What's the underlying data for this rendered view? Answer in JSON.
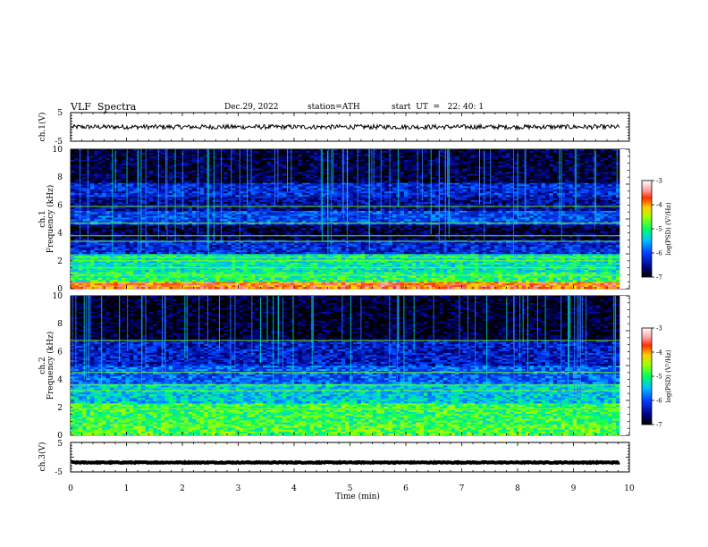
{
  "header": {
    "title": "VLF  Spectra",
    "date": "Dec.29, 2022",
    "station": "station=ATH",
    "start": "start  UT  =   22: 40: 1"
  },
  "chart_data": [
    {
      "type": "line",
      "panel": "ch1-waveform",
      "ylabel": "ch.1(V)",
      "ylim": [
        -5,
        5
      ],
      "yticks": [
        "5",
        "-5"
      ],
      "xlim": [
        0,
        10
      ],
      "x_end": 9.83,
      "trace_level": 0.0,
      "trace_amplitude": 0.8,
      "color": "#000000"
    },
    {
      "type": "heatmap",
      "panel": "ch1-spectrogram",
      "ylabel_line1": "ch.1",
      "ylabel_line2": "Frequency  (kHz)",
      "ylim": [
        0,
        10
      ],
      "yticks": [
        "0",
        "2",
        "4",
        "6",
        "8",
        "10"
      ],
      "xlim": [
        0,
        10
      ],
      "x_end": 9.83,
      "colorbar": {
        "label": "log(PSD) (V²/Hz)",
        "range": [
          -7,
          -3
        ],
        "ticks": [
          "-3",
          "-4",
          "-5",
          "-6",
          "-7"
        ]
      },
      "horizontal_lines_khz": [
        0.95,
        1.5,
        2.0,
        2.25,
        3.4,
        3.8,
        4.7,
        5.9
      ],
      "bands": [
        {
          "from_khz": 0.0,
          "to_khz": 0.5,
          "level": -3.8
        },
        {
          "from_khz": 0.5,
          "to_khz": 1.2,
          "level": -5.0
        },
        {
          "from_khz": 1.2,
          "to_khz": 2.5,
          "level": -5.2
        },
        {
          "from_khz": 2.5,
          "to_khz": 3.5,
          "level": -6.2
        },
        {
          "from_khz": 3.5,
          "to_khz": 4.6,
          "level": -6.8
        },
        {
          "from_khz": 4.6,
          "to_khz": 5.6,
          "level": -6.0
        },
        {
          "from_khz": 5.6,
          "to_khz": 6.6,
          "level": -6.5
        },
        {
          "from_khz": 6.6,
          "to_khz": 7.6,
          "level": -6.2
        },
        {
          "from_khz": 7.6,
          "to_khz": 10.0,
          "level": -6.8
        }
      ]
    },
    {
      "type": "heatmap",
      "panel": "ch2-spectrogram",
      "ylabel_line1": "ch.2",
      "ylabel_line2": "Frequency  (kHz)",
      "ylim": [
        0,
        10
      ],
      "yticks": [
        "0",
        "2",
        "4",
        "6",
        "8",
        "10"
      ],
      "xlim": [
        0,
        10
      ],
      "x_end": 9.83,
      "colorbar": {
        "label": "log(PSD) (V²/Hz)",
        "range": [
          -7,
          -3
        ],
        "ticks": [
          "-3",
          "-4",
          "-5",
          "-6",
          "-7"
        ]
      },
      "horizontal_lines_khz": [
        1.9,
        3.2,
        3.6,
        4.5,
        6.8
      ],
      "bands": [
        {
          "from_khz": 0.0,
          "to_khz": 0.8,
          "level": -4.8
        },
        {
          "from_khz": 0.8,
          "to_khz": 2.3,
          "level": -4.9
        },
        {
          "from_khz": 2.3,
          "to_khz": 3.7,
          "level": -5.4
        },
        {
          "from_khz": 3.7,
          "to_khz": 5.0,
          "level": -5.9
        },
        {
          "from_khz": 5.0,
          "to_khz": 6.8,
          "level": -6.3
        },
        {
          "from_khz": 6.8,
          "to_khz": 10.0,
          "level": -6.9
        }
      ]
    },
    {
      "type": "line",
      "panel": "ch3-waveform",
      "ylabel": "ch.3(V)",
      "ylim": [
        -5,
        5
      ],
      "yticks": [
        "5",
        "-5"
      ],
      "xlim": [
        0,
        10
      ],
      "x_end": 9.83,
      "trace_level": -1.8,
      "trace_amplitude": 0.15,
      "color": "#000000",
      "xlabel": "Time  (min)",
      "xticks": [
        "0",
        "1",
        "2",
        "3",
        "4",
        "5",
        "6",
        "7",
        "8",
        "9",
        "10"
      ]
    }
  ]
}
